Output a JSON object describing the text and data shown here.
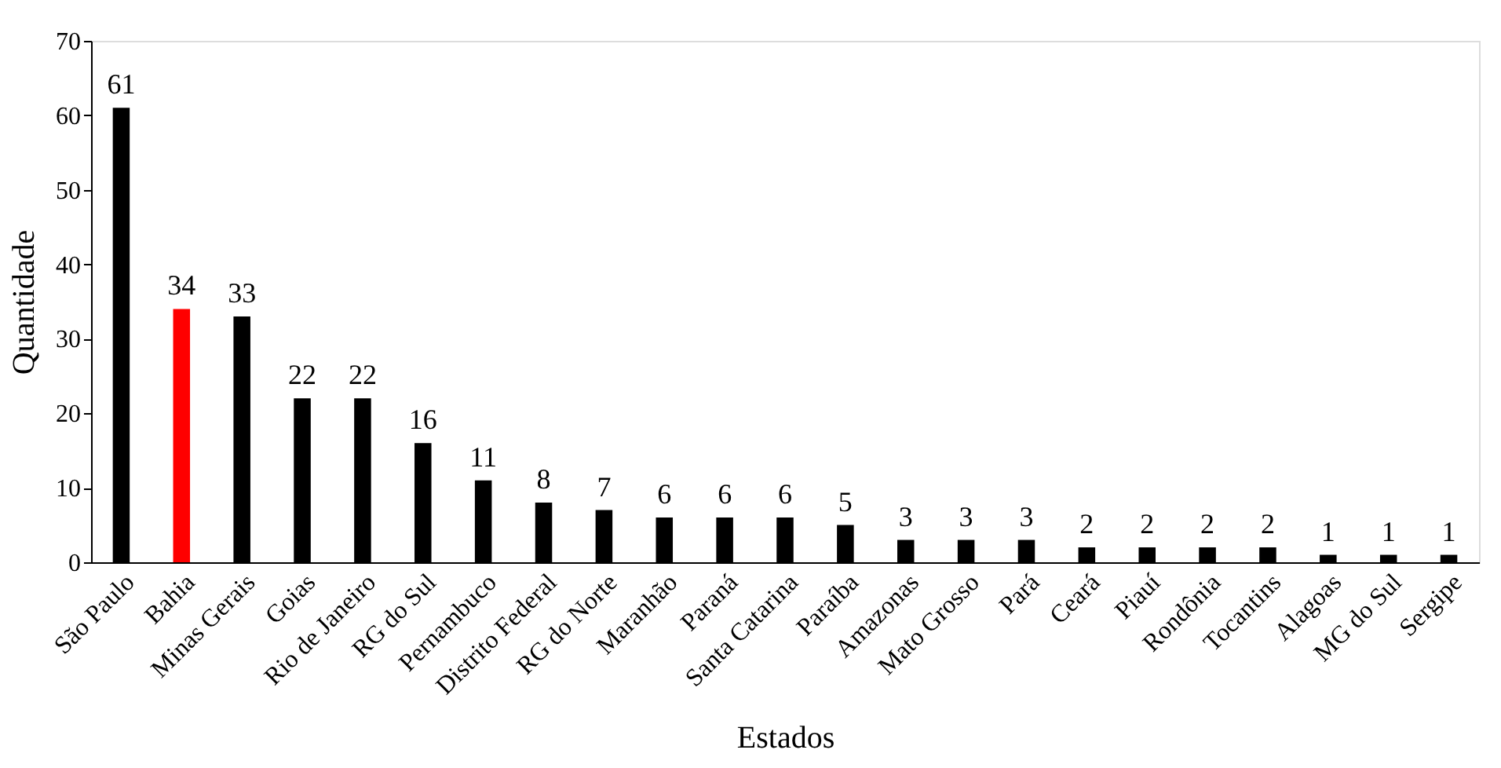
{
  "chart_data": {
    "type": "bar",
    "xlabel": "Estados",
    "ylabel": "Quantidade",
    "categories": [
      "São Paulo",
      "Bahia",
      "Minas Gerais",
      "Goias",
      "Rio de Janeiro",
      "RG do Sul",
      "Pernambuco",
      "Distrito Federal",
      "RG do Norte",
      "Maranhão",
      "Paraná",
      "Santa Catarina",
      "Paraíba",
      "Amazonas",
      "Mato Grosso",
      "Pará",
      "Ceará",
      "Piauí",
      "Rondônia",
      "Tocantins",
      "Alagoas",
      "MG do Sul",
      "Sergipe"
    ],
    "values": [
      61,
      34,
      33,
      22,
      22,
      16,
      11,
      8,
      7,
      6,
      6,
      6,
      5,
      3,
      3,
      3,
      2,
      2,
      2,
      2,
      1,
      1,
      1
    ],
    "colors": [
      "#000000",
      "#ff0000",
      "#000000",
      "#000000",
      "#000000",
      "#000000",
      "#000000",
      "#000000",
      "#000000",
      "#000000",
      "#000000",
      "#000000",
      "#000000",
      "#000000",
      "#000000",
      "#000000",
      "#000000",
      "#000000",
      "#000000",
      "#000000",
      "#000000",
      "#000000",
      "#000000"
    ],
    "ylim": [
      0,
      70
    ],
    "yticks": [
      0,
      10,
      20,
      30,
      40,
      50,
      60,
      70
    ],
    "data_labels": true,
    "grid": false
  }
}
